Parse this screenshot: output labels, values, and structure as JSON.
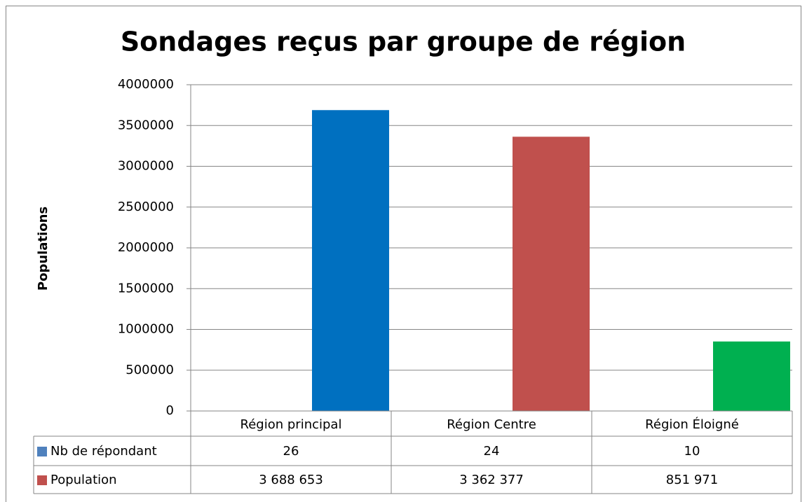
{
  "chart_data": {
    "type": "bar",
    "title": "Sondages reçus par groupe de région",
    "y_label": "Populations",
    "categories": [
      "Région principal",
      "Région Centre",
      "Région Éloigné"
    ],
    "series": [
      {
        "name": "Nb de répondant",
        "color": "#4f81bd",
        "values": [
          26,
          24,
          10
        ]
      },
      {
        "name": "Population",
        "color": "#c0504d",
        "point_colors": [
          "#0070c0",
          "#c0504d",
          "#00b050"
        ],
        "values": [
          3688653,
          3362377,
          851971
        ],
        "value_labels": [
          "3 688 653",
          "3 362 377",
          "851 971"
        ]
      }
    ],
    "ylim": [
      0,
      4000000
    ],
    "yticks": [
      0,
      500000,
      1000000,
      1500000,
      2000000,
      2500000,
      3000000,
      3500000,
      4000000
    ],
    "grid": true,
    "legend": "table"
  }
}
